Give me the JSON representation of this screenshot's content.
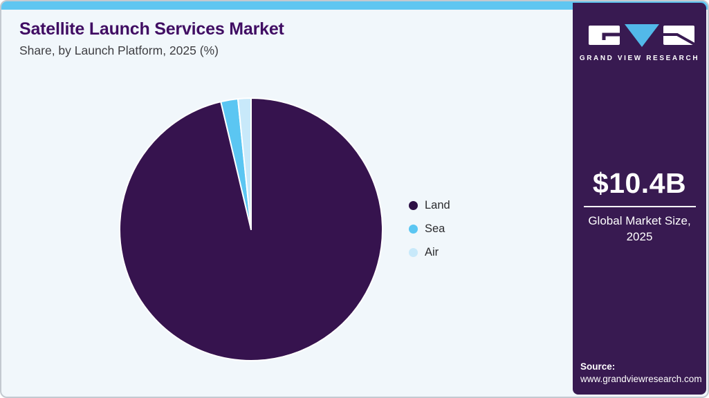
{
  "header": {
    "title": "Satellite Launch Services Market",
    "subtitle": "Share, by Launch Platform, 2025 (%)"
  },
  "chart_data": {
    "type": "pie",
    "title": "Satellite Launch Services Market Share, by Launch Platform, 2025 (%)",
    "start_angle_deg": 0,
    "direction": "clockwise",
    "legend_position": "right",
    "series": [
      {
        "name": "Land",
        "value": 96.3,
        "color": "#36134e",
        "legend_color": "#2d1045"
      },
      {
        "name": "Sea",
        "value": 2.1,
        "color": "#5bc6f2",
        "legend_color": "#5bc6f2"
      },
      {
        "name": "Air",
        "value": 1.6,
        "color": "#c8e9fa",
        "legend_color": "#c8e9fa"
      }
    ],
    "slice_separator_color": "#ffffff"
  },
  "sidebar": {
    "brand": "GRAND VIEW RESEARCH",
    "market_size": "$10.4B",
    "market_caption": "Global Market Size,\n2025",
    "source_label": "Source:",
    "source_url": "www.grandviewresearch.com"
  },
  "colors": {
    "accent_bar": "#5fc6f1",
    "card_background": "#f1f7fb",
    "card_border": "#c3c9d0",
    "sidebar_background": "#381a51",
    "title_text": "#400d63",
    "logo_triangle": "#52b9e9",
    "logo_glyph": "#381a51"
  }
}
